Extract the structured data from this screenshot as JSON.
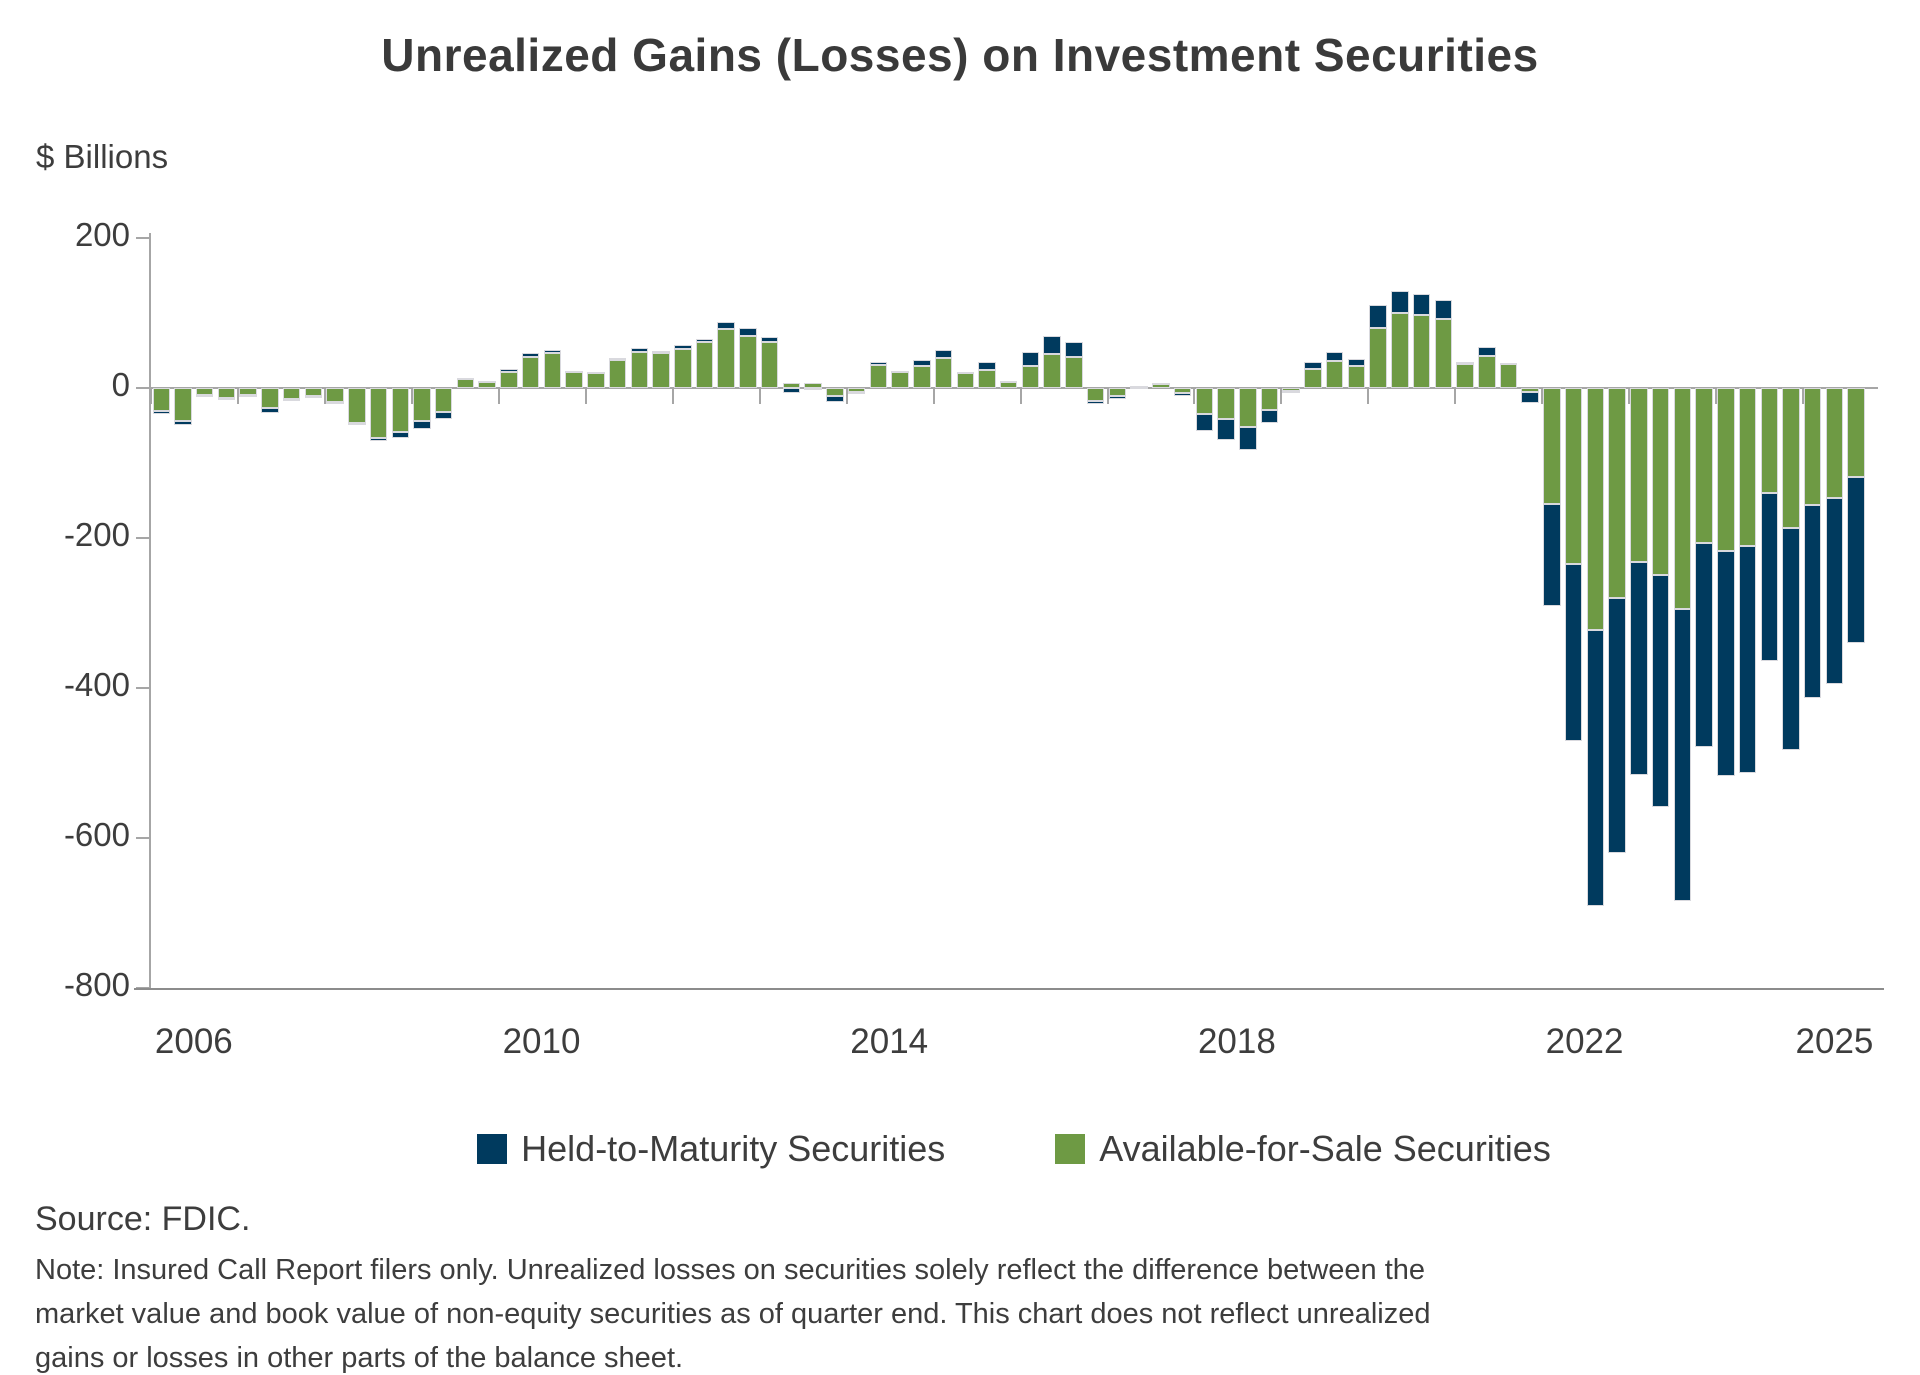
{
  "title": "Unrealized Gains (Losses) on Investment Securities",
  "y_axis": {
    "unit_label": "$ Billions",
    "ticks": [
      200,
      0,
      -200,
      -400,
      -600,
      -800
    ],
    "min": -800,
    "max": 200
  },
  "x_axis": {
    "labels": [
      "2006",
      "2010",
      "2014",
      "2018",
      "2022",
      "2025"
    ]
  },
  "legend": [
    {
      "label": "Held-to-Maturity Securities",
      "color": "#003a5e"
    },
    {
      "label": "Available-for-Sale Securities",
      "color": "#6e9a44"
    }
  ],
  "source": "Source: FDIC.",
  "note": "Note: Insured Call Report filers only. Unrealized losses on securities solely reflect the difference between the\nmarket value and book value of non-equity securities as of quarter end. This chart does not reflect unrealized\ngains or losses in other parts of the balance sheet.",
  "chart_data": {
    "type": "bar",
    "stacked": true,
    "title": "Unrealized Gains (Losses) on Investment Securities",
    "xlabel": "",
    "ylabel": "$ Billions",
    "ylim": [
      -800,
      200
    ],
    "grid": false,
    "legend_position": "bottom",
    "categories": [
      "2006Q1",
      "2006Q2",
      "2006Q3",
      "2006Q4",
      "2007Q1",
      "2007Q2",
      "2007Q3",
      "2007Q4",
      "2008Q1",
      "2008Q2",
      "2008Q3",
      "2008Q4",
      "2009Q1",
      "2009Q2",
      "2009Q3",
      "2009Q4",
      "2010Q1",
      "2010Q2",
      "2010Q3",
      "2010Q4",
      "2011Q1",
      "2011Q2",
      "2011Q3",
      "2011Q4",
      "2012Q1",
      "2012Q2",
      "2012Q3",
      "2012Q4",
      "2013Q1",
      "2013Q2",
      "2013Q3",
      "2013Q4",
      "2014Q1",
      "2014Q2",
      "2014Q3",
      "2014Q4",
      "2015Q1",
      "2015Q2",
      "2015Q3",
      "2015Q4",
      "2016Q1",
      "2016Q2",
      "2016Q3",
      "2016Q4",
      "2017Q1",
      "2017Q2",
      "2017Q3",
      "2017Q4",
      "2018Q1",
      "2018Q2",
      "2018Q3",
      "2018Q4",
      "2019Q1",
      "2019Q2",
      "2019Q3",
      "2019Q4",
      "2020Q1",
      "2020Q2",
      "2020Q3",
      "2020Q4",
      "2021Q1",
      "2021Q2",
      "2021Q3",
      "2021Q4",
      "2022Q1",
      "2022Q2",
      "2022Q3",
      "2022Q4",
      "2023Q1",
      "2023Q2",
      "2023Q3",
      "2023Q4",
      "2024Q1",
      "2024Q2",
      "2024Q3",
      "2024Q4",
      "2025Q1",
      "2025Q2",
      "2025Q3"
    ],
    "series": [
      {
        "name": "Available-for-Sale Securities",
        "color": "#6e9a44",
        "values": [
          -30,
          -44,
          -9,
          -13,
          -9,
          -27,
          -15,
          -10,
          -19,
          -47,
          -67,
          -59,
          -44,
          -32,
          13,
          8,
          22,
          42,
          47,
          21,
          20,
          37,
          48,
          47,
          52,
          61,
          79,
          70,
          61,
          7,
          7,
          -11,
          -5,
          31,
          21,
          30,
          40,
          20,
          24,
          8,
          30,
          45,
          42,
          -17,
          -10,
          2,
          5,
          -7,
          -35,
          -41,
          -52,
          -29,
          -4,
          25,
          36,
          30,
          80,
          100,
          97,
          92,
          32,
          43,
          32,
          -5,
          -155,
          -235,
          -322,
          -280,
          -232,
          -249,
          -294,
          -206,
          -217,
          -210,
          -140,
          -186,
          -156,
          -147,
          -118
        ]
      },
      {
        "name": "Held-to-Maturity Securities",
        "color": "#003a5e",
        "values": [
          -4,
          -5,
          -3,
          -3,
          -1,
          -6,
          -2,
          -1,
          -2,
          -2,
          -3,
          -8,
          -11,
          -9,
          1,
          2,
          3,
          5,
          4,
          2,
          2,
          3,
          5,
          3,
          5,
          5,
          9,
          10,
          7,
          -7,
          -3,
          -7,
          -1,
          4,
          2,
          8,
          11,
          2,
          11,
          2,
          18,
          25,
          20,
          -4,
          -5,
          1,
          2,
          -3,
          -22,
          -28,
          -31,
          -18,
          -2,
          10,
          12,
          9,
          31,
          30,
          28,
          26,
          3,
          12,
          2,
          -15,
          -135,
          -235,
          -368,
          -340,
          -284,
          -310,
          -390,
          -272,
          -300,
          -303,
          -224,
          -296,
          -257,
          -248,
          -222
        ]
      }
    ]
  }
}
